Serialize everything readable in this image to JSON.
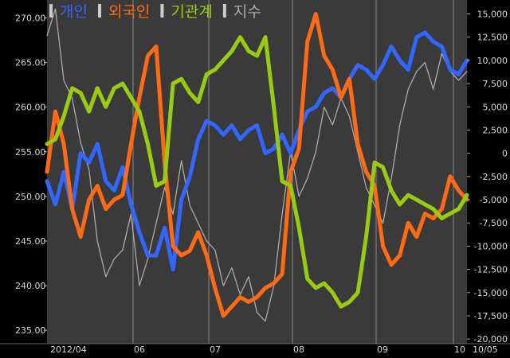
{
  "chart_data": {
    "type": "line",
    "background": "#000000",
    "plot_background": "#3a3a3a",
    "grid": true,
    "legend_position": "top-left",
    "left_axis": {
      "ticks": [
        "270.00",
        "265.00",
        "260.00",
        "255.00",
        "250.00",
        "245.00",
        "240.00",
        "235.00"
      ],
      "range": [
        233.5,
        272.0
      ]
    },
    "right_axis": {
      "ticks": [
        "15,000",
        "12,500",
        "10,000",
        "7,500",
        "5,000",
        "2,500",
        "0",
        "-2,500",
        "-5,000",
        "-7,500",
        "-10,000",
        "-12,500",
        "-15,000",
        "-17,500",
        "-20,000"
      ],
      "range": [
        -20500,
        16500
      ]
    },
    "x_axis": {
      "labels": [
        "2012/04",
        "06",
        "07",
        "08",
        "09",
        "10",
        "10/05"
      ],
      "range": [
        0,
        100
      ]
    },
    "series": [
      {
        "name": "개인",
        "color": "#3366ff",
        "axis": "right",
        "x": [
          0,
          2,
          4,
          6,
          8,
          10,
          12,
          14,
          16,
          18,
          20,
          22,
          24,
          26,
          28,
          30,
          32,
          34,
          36,
          38,
          40,
          42,
          44,
          46,
          48,
          50,
          52,
          54,
          56,
          58,
          60,
          62,
          64,
          66,
          68,
          70,
          72,
          74,
          76,
          78,
          80,
          82,
          84,
          86,
          88,
          90,
          92,
          94,
          96,
          98,
          100
        ],
        "y": [
          -3000,
          -5500,
          -2000,
          -6000,
          0,
          -1000,
          1000,
          -3000,
          -4000,
          -1500,
          -5500,
          -8500,
          -11000,
          -11000,
          -8000,
          -12500,
          -5000,
          -2500,
          1500,
          3500,
          3000,
          2000,
          3000,
          1500,
          2500,
          3000,
          0,
          500,
          2000,
          0,
          2500,
          4500,
          5000,
          6500,
          7000,
          6000,
          8000,
          9500,
          9000,
          8000,
          9500,
          11500,
          10000,
          9000,
          12500,
          13000,
          12000,
          11500,
          9000,
          8500,
          10000
        ]
      },
      {
        "name": "외국인",
        "color": "#ff6a14",
        "axis": "right",
        "x": [
          0,
          2,
          4,
          6,
          8,
          10,
          12,
          14,
          16,
          18,
          20,
          22,
          24,
          26,
          28,
          30,
          32,
          34,
          36,
          38,
          40,
          42,
          44,
          46,
          48,
          50,
          52,
          54,
          56,
          58,
          60,
          62,
          64,
          66,
          68,
          70,
          72,
          74,
          76,
          78,
          80,
          82,
          84,
          86,
          88,
          90,
          92,
          94,
          96,
          98,
          100
        ],
        "y": [
          -2000,
          4500,
          1000,
          -6000,
          -9000,
          -5000,
          -3500,
          -6000,
          -5000,
          -4500,
          1000,
          6000,
          10500,
          11500,
          -1000,
          -10000,
          -11000,
          -10500,
          -8500,
          -11000,
          -14500,
          -17500,
          -16500,
          -15500,
          -16000,
          -15500,
          -14500,
          -14000,
          -13000,
          -2000,
          500,
          12000,
          15000,
          10500,
          9000,
          6000,
          8000,
          1000,
          -2000,
          -3500,
          -10000,
          -12000,
          -11000,
          -7500,
          -9000,
          -6500,
          -7000,
          -6000,
          -2500,
          -4000,
          -5000
        ]
      },
      {
        "name": "기관계",
        "color": "#99cc11",
        "axis": "right",
        "x": [
          0,
          2,
          4,
          6,
          8,
          10,
          12,
          14,
          16,
          18,
          20,
          22,
          24,
          26,
          28,
          30,
          32,
          34,
          36,
          38,
          40,
          42,
          44,
          46,
          48,
          50,
          52,
          54,
          56,
          58,
          60,
          62,
          64,
          66,
          68,
          70,
          72,
          74,
          76,
          78,
          80,
          82,
          84,
          86,
          88,
          90,
          92,
          94,
          96,
          98,
          100
        ],
        "y": [
          1000,
          1500,
          4000,
          7000,
          6500,
          4500,
          7000,
          5000,
          7000,
          7500,
          6000,
          4500,
          1000,
          -3500,
          -3000,
          7500,
          8000,
          6500,
          5500,
          8500,
          9000,
          10000,
          11000,
          12500,
          11000,
          10500,
          12500,
          5000,
          -3000,
          -3500,
          -8000,
          -13500,
          -14500,
          -14000,
          -15000,
          -16500,
          -16000,
          -15000,
          -9000,
          -1000,
          -1500,
          -4000,
          -5500,
          -4500,
          -5000,
          -5500,
          -6000,
          -7000,
          -6500,
          -6000,
          -4500
        ]
      },
      {
        "name": "지수",
        "color": "#aaaaaa",
        "axis": "left",
        "x": [
          0,
          2,
          4,
          6,
          8,
          10,
          12,
          14,
          16,
          18,
          20,
          22,
          24,
          26,
          28,
          30,
          32,
          34,
          36,
          38,
          40,
          42,
          44,
          46,
          48,
          50,
          52,
          54,
          56,
          58,
          60,
          62,
          64,
          66,
          68,
          70,
          72,
          74,
          76,
          78,
          80,
          82,
          84,
          86,
          88,
          90,
          92,
          94,
          96,
          98,
          100
        ],
        "y": [
          268,
          271,
          263,
          261,
          256,
          253,
          245,
          241,
          243,
          244,
          248,
          240,
          243,
          247,
          251,
          248,
          254,
          249,
          247,
          245,
          244,
          240,
          242,
          239,
          241,
          237,
          236,
          240,
          248,
          255,
          250,
          252,
          255,
          260,
          258,
          261,
          259,
          255,
          251,
          249,
          247,
          252,
          258,
          262,
          264,
          265,
          262,
          266,
          264,
          263,
          264
        ]
      }
    ]
  }
}
